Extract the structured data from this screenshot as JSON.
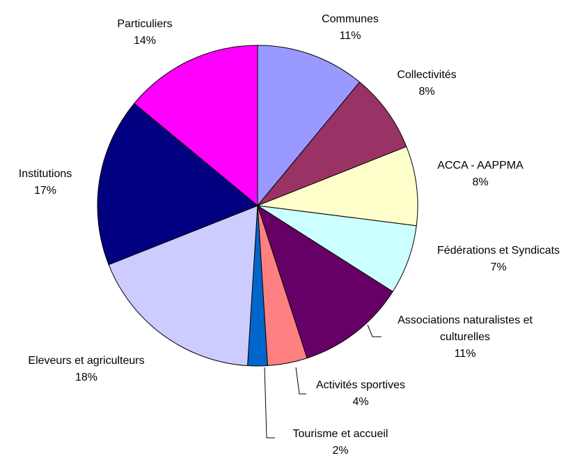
{
  "chart_data": {
    "type": "pie",
    "categories": [
      "Communes",
      "Collectivités",
      "ACCA - AAPPMA",
      "Fédérations et Syndicats",
      "Associations naturalistes et culturelles",
      "Activités sportives",
      "Tourisme et accueil",
      "Eleveurs et agriculteurs",
      "Institutions",
      "Particuliers"
    ],
    "values": [
      11,
      8,
      8,
      7,
      11,
      4,
      2,
      18,
      17,
      14
    ],
    "value_labels": [
      "11%",
      "8%",
      "8%",
      "7%",
      "11%",
      "4%",
      "2%",
      "18%",
      "17%",
      "14%"
    ],
    "colors": [
      "#9999ff",
      "#993366",
      "#ffffcc",
      "#ccffff",
      "#660066",
      "#ff8080",
      "#0066cc",
      "#ccccff",
      "#000080",
      "#ff00ff"
    ]
  }
}
